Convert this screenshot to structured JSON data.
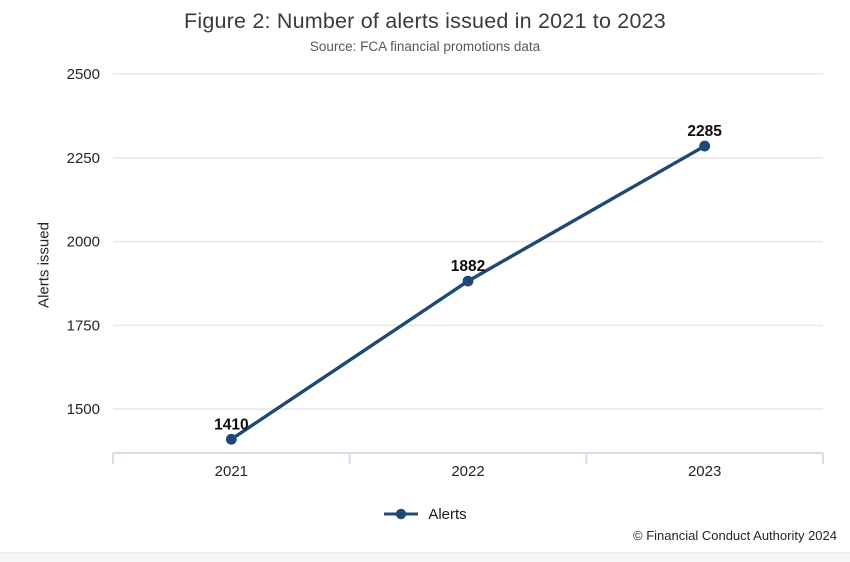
{
  "page": {
    "copyright": "© Financial Conduct Authority 2024"
  },
  "chart_data": {
    "type": "line",
    "title": "Figure 2: Number of alerts issued in 2021 to 2023",
    "subtitle": "Source: FCA financial promotions data",
    "categories": [
      "2021",
      "2022",
      "2023"
    ],
    "series": [
      {
        "name": "Alerts",
        "values": [
          1410,
          1882,
          2285
        ]
      }
    ],
    "data_labels": [
      "1410",
      "1882",
      "2285"
    ],
    "xlabel": "",
    "ylabel": "Alerts issued",
    "yticks": [
      1500,
      1750,
      2000,
      2250,
      2500
    ],
    "ylim": [
      1369,
      2500
    ],
    "grid": "horizontal",
    "legend_position": "bottom",
    "colors": {
      "line": "#1f4975",
      "marker": "#1f4975",
      "grid": "#e8e8e8",
      "axis": "#d8dbe8",
      "tick_label": "#262626",
      "data_label": "#0d0d0d"
    }
  }
}
